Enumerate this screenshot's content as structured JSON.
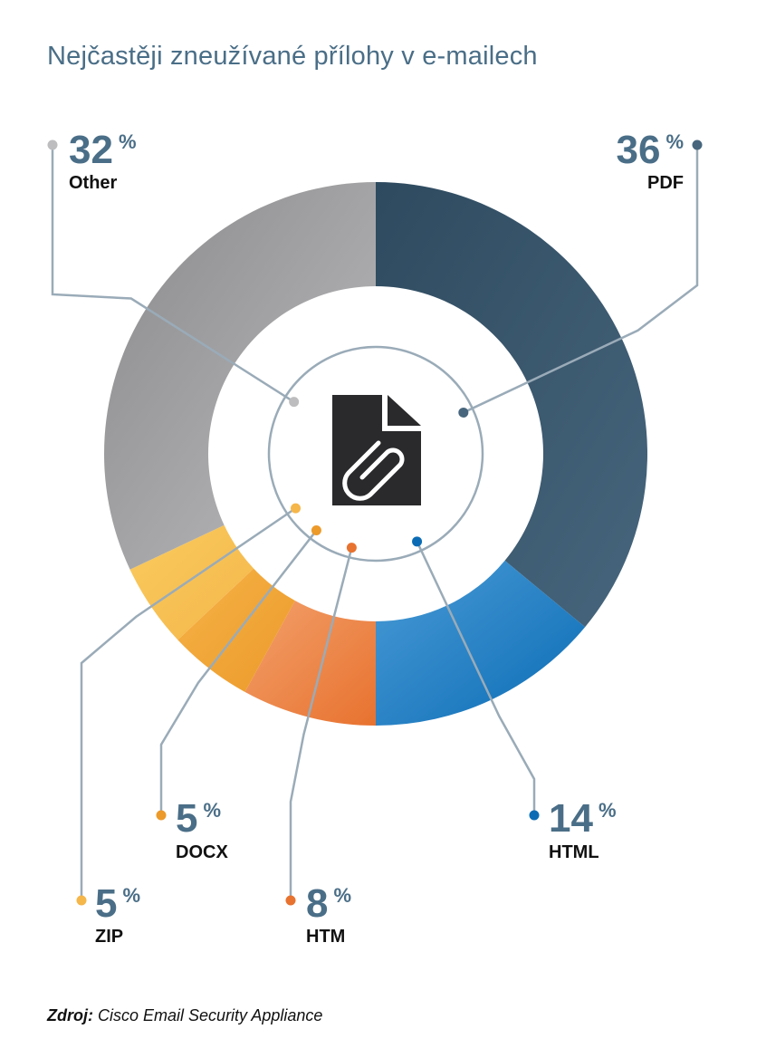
{
  "header": {
    "title": "Nejčastěji zneužívané přílohy v e-mailech"
  },
  "footer": {
    "source_label": "Zdroj:",
    "source_text": "Cisco Email Security Appliance"
  },
  "icon": {
    "name": "attachment-file-icon"
  },
  "colors": {
    "title": "#4a6e87",
    "leader": "#9aabb8"
  },
  "chart_data": {
    "type": "pie",
    "title": "Nejčastěji zneužívané přílohy v e-mailech",
    "donut": true,
    "unit": "%",
    "series": [
      {
        "name": "PDF",
        "value": 36,
        "color_from": "#2e4a5f",
        "color_to": "#47667d",
        "label_side": "right"
      },
      {
        "name": "HTML",
        "value": 14,
        "color_from": "#4a9bd6",
        "color_to": "#0b6cb5",
        "label_side": "right"
      },
      {
        "name": "HTM",
        "value": 8,
        "color_from": "#f2a06b",
        "color_to": "#e8722f",
        "label_side": "bottom"
      },
      {
        "name": "DOCX",
        "value": 5,
        "color_from": "#f6b247",
        "color_to": "#ec9a2a",
        "label_side": "bottom"
      },
      {
        "name": "ZIP",
        "value": 5,
        "color_from": "#f9cb5e",
        "color_to": "#f5b64a",
        "label_side": "left"
      },
      {
        "name": "Other",
        "value": 32,
        "color_from": "#8a8a8c",
        "color_to": "#bdbdbf",
        "label_side": "left"
      }
    ]
  }
}
